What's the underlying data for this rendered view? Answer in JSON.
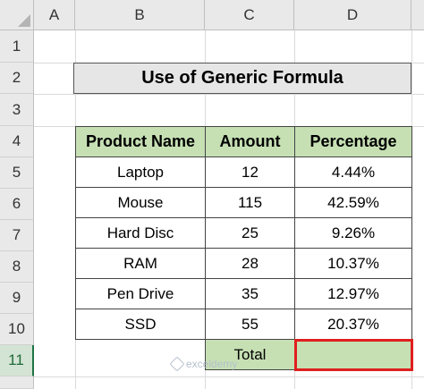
{
  "columns": [
    "A",
    "B",
    "C",
    "D"
  ],
  "rows": [
    "1",
    "2",
    "3",
    "4",
    "5",
    "6",
    "7",
    "8",
    "9",
    "10",
    "11"
  ],
  "title": "Use of Generic Formula",
  "table": {
    "headers": [
      "Product Name",
      "Amount",
      "Percentage"
    ],
    "rows": [
      [
        "Laptop",
        "12",
        "4.44%"
      ],
      [
        "Mouse",
        "115",
        "42.59%"
      ],
      [
        "Hard Disc",
        "25",
        "9.26%"
      ],
      [
        "RAM",
        "28",
        "10.37%"
      ],
      [
        "Pen Drive",
        "35",
        "12.97%"
      ],
      [
        "SSD",
        "55",
        "20.37%"
      ]
    ],
    "total_label": "Total",
    "total_value": ""
  },
  "watermark": "exceldemy",
  "colors": {
    "header_fill": "#c6e0b4",
    "title_fill": "#e7e6e6",
    "highlight": "#e01e1e"
  }
}
